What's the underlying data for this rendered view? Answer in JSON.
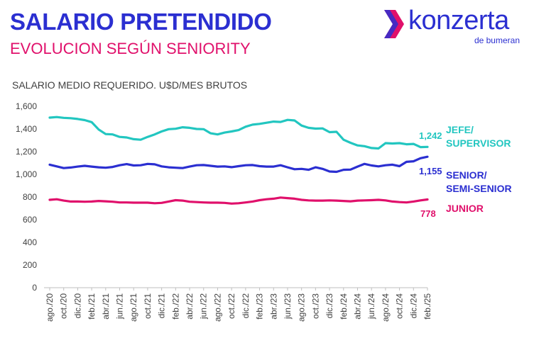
{
  "header": {
    "title": "SALARIO PRETENDIDO",
    "subtitle": "EVOLUCION SEGÚN SENIORITY"
  },
  "logo": {
    "name": "konzerta",
    "tagline": "de bumeran",
    "colors": {
      "primary": "#2b2fd1",
      "accent_pink": "#e0106b",
      "accent_cyan": "#22c6c0"
    }
  },
  "chart_data": {
    "type": "line",
    "title": "SALARIO MEDIO REQUERIDO. U$D/MES BRUTOS",
    "xlabel": "",
    "ylabel": "",
    "ylim": [
      0,
      1600
    ],
    "yticks": [
      "0",
      "200",
      "400",
      "600",
      "800",
      "1,000",
      "1,200",
      "1,400",
      "1,600"
    ],
    "grid": false,
    "legend": "right, inline labels",
    "x": [
      "ago./20",
      "sep./20",
      "oct./20",
      "nov./20",
      "dic./20",
      "ene./21",
      "feb./21",
      "mar./21",
      "abr./21",
      "may./21",
      "jun./21",
      "jul./21",
      "ago./21",
      "sep./21",
      "oct./21",
      "nov./21",
      "dic./21",
      "ene./22",
      "feb./22",
      "mar./22",
      "abr./22",
      "may./22",
      "jun./22",
      "jul./22",
      "ago./22",
      "sep./22",
      "oct./22",
      "nov./22",
      "dic./22",
      "ene./23",
      "feb./23",
      "mar./23",
      "abr./23",
      "may./23",
      "jun./23",
      "jul./23",
      "ago./23",
      "sep./23",
      "oct./23",
      "nov./23",
      "dic./23",
      "ene./24",
      "feb./24",
      "mar./24",
      "abr./24",
      "may./24",
      "jun./24",
      "jul./24",
      "ago./24",
      "sep./24",
      "oct./24",
      "nov./24",
      "dic./24",
      "ene./25",
      "feb./25"
    ],
    "x_tick_labels": [
      "ago./20",
      "oct./20",
      "dic./20",
      "feb./21",
      "abr./21",
      "jun./21",
      "ago./21",
      "oct./21",
      "dic./21",
      "feb./22",
      "abr./22",
      "jun./22",
      "ago./22",
      "oct./22",
      "dic./22",
      "feb./23",
      "abr./23",
      "jun./23",
      "ago./23",
      "oct./23",
      "dic./23",
      "feb./24",
      "abr./24",
      "jun./24",
      "ago./24",
      "oct./24",
      "dic./24",
      "feb./25"
    ],
    "series": [
      {
        "name": "JEFE/ SUPERVISOR",
        "label_lines": [
          "JEFE/",
          "SUPERVISOR"
        ],
        "color": "#22c6c0",
        "end_label": "1,242",
        "values": [
          1500,
          1505,
          1498,
          1495,
          1488,
          1478,
          1460,
          1395,
          1355,
          1352,
          1330,
          1325,
          1310,
          1305,
          1330,
          1352,
          1378,
          1398,
          1402,
          1415,
          1410,
          1400,
          1398,
          1362,
          1352,
          1368,
          1378,
          1390,
          1420,
          1438,
          1445,
          1455,
          1465,
          1462,
          1480,
          1475,
          1430,
          1410,
          1403,
          1405,
          1372,
          1375,
          1305,
          1278,
          1255,
          1248,
          1232,
          1228,
          1275,
          1272,
          1275,
          1265,
          1268,
          1240,
          1242
        ]
      },
      {
        "name": "SENIOR/ SEMI-SENIOR",
        "label_lines": [
          "SENIOR/",
          "SEMI-SENIOR"
        ],
        "color": "#2b2fd1",
        "end_label": "1,155",
        "values": [
          1085,
          1070,
          1055,
          1060,
          1068,
          1075,
          1068,
          1062,
          1058,
          1065,
          1080,
          1090,
          1078,
          1080,
          1092,
          1088,
          1070,
          1062,
          1058,
          1055,
          1068,
          1080,
          1082,
          1075,
          1068,
          1070,
          1063,
          1072,
          1080,
          1082,
          1072,
          1068,
          1068,
          1080,
          1062,
          1045,
          1048,
          1040,
          1062,
          1048,
          1025,
          1022,
          1040,
          1042,
          1068,
          1092,
          1078,
          1070,
          1080,
          1085,
          1072,
          1110,
          1115,
          1142,
          1155
        ]
      },
      {
        "name": "JUNIOR",
        "label_lines": [
          "JUNIOR"
        ],
        "color": "#e0106b",
        "end_label": "778",
        "values": [
          775,
          780,
          768,
          760,
          760,
          758,
          760,
          765,
          762,
          758,
          752,
          752,
          750,
          750,
          750,
          745,
          748,
          760,
          772,
          768,
          758,
          755,
          752,
          750,
          750,
          748,
          742,
          745,
          752,
          760,
          772,
          780,
          785,
          795,
          790,
          785,
          775,
          770,
          768,
          768,
          770,
          768,
          765,
          762,
          768,
          770,
          772,
          775,
          770,
          760,
          755,
          752,
          760,
          770,
          778
        ]
      }
    ]
  }
}
